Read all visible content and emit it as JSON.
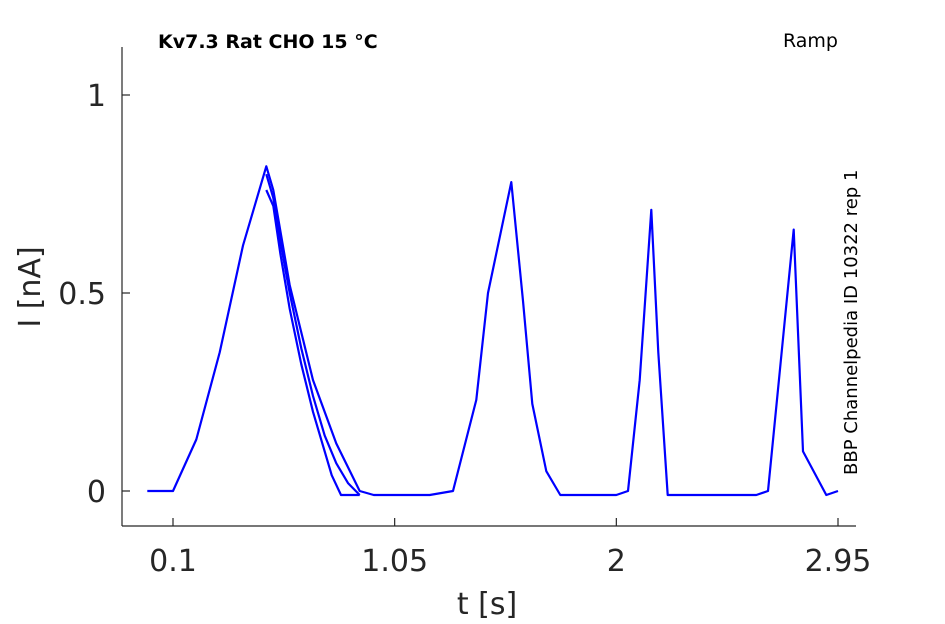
{
  "chart_data": {
    "type": "line",
    "title": "Kv7.3  Rat  CHO  15 °C",
    "protocol": "Ramp",
    "side_label": "BBP Channelpedia ID 10322 rep 1",
    "xlabel": "t [s]",
    "ylabel": "I [nA]",
    "xlim": [
      -0.1,
      3.0
    ],
    "ylim": [
      -0.09,
      1.12
    ],
    "xticks": [
      {
        "value": 0.1,
        "label": "0.1"
      },
      {
        "value": 1.05,
        "label": "1.05"
      },
      {
        "value": 2.0,
        "label": "2"
      },
      {
        "value": 2.95,
        "label": "2.95"
      }
    ],
    "yticks": [
      {
        "value": 0,
        "label": "0"
      },
      {
        "value": 0.5,
        "label": "0.5"
      },
      {
        "value": 1,
        "label": "1"
      }
    ],
    "grid": false,
    "line_color": "#0000ff",
    "series": [
      {
        "x": [
          -0.01,
          0.05,
          0.1,
          0.2,
          0.3,
          0.4,
          0.5,
          0.53,
          0.6,
          0.7,
          0.8,
          0.9,
          0.96,
          1.0,
          1.1,
          1.2,
          1.3,
          1.4,
          1.45,
          1.55,
          1.6,
          1.64,
          1.7,
          1.76,
          1.8,
          1.9,
          2.0,
          2.05,
          2.1,
          2.15,
          2.18,
          2.22,
          2.3,
          2.4,
          2.5,
          2.6,
          2.65,
          2.7,
          2.76,
          2.8,
          2.9,
          2.95
        ],
        "y": [
          0.0,
          0.0,
          0.0,
          0.13,
          0.35,
          0.62,
          0.82,
          0.76,
          0.52,
          0.28,
          0.12,
          0.0,
          -0.01,
          -0.01,
          -0.01,
          -0.01,
          0.0,
          0.23,
          0.5,
          0.78,
          0.48,
          0.22,
          0.05,
          -0.01,
          -0.01,
          -0.01,
          -0.01,
          0.0,
          0.28,
          0.71,
          0.35,
          -0.01,
          -0.01,
          -0.01,
          -0.01,
          -0.01,
          0.0,
          0.3,
          0.66,
          0.1,
          -0.01,
          0.0
        ]
      },
      {
        "x": [
          0.5,
          0.53,
          0.56,
          0.6,
          0.65,
          0.7,
          0.75,
          0.78,
          0.82,
          0.85,
          0.9
        ],
        "y": [
          0.76,
          0.72,
          0.6,
          0.46,
          0.32,
          0.2,
          0.1,
          0.04,
          -0.01,
          -0.01,
          -0.01
        ]
      },
      {
        "x": [
          0.5,
          0.53,
          0.56,
          0.6,
          0.65,
          0.7,
          0.75,
          0.8,
          0.85,
          0.9
        ],
        "y": [
          0.8,
          0.74,
          0.63,
          0.5,
          0.36,
          0.24,
          0.14,
          0.07,
          0.02,
          -0.01
        ]
      }
    ]
  }
}
